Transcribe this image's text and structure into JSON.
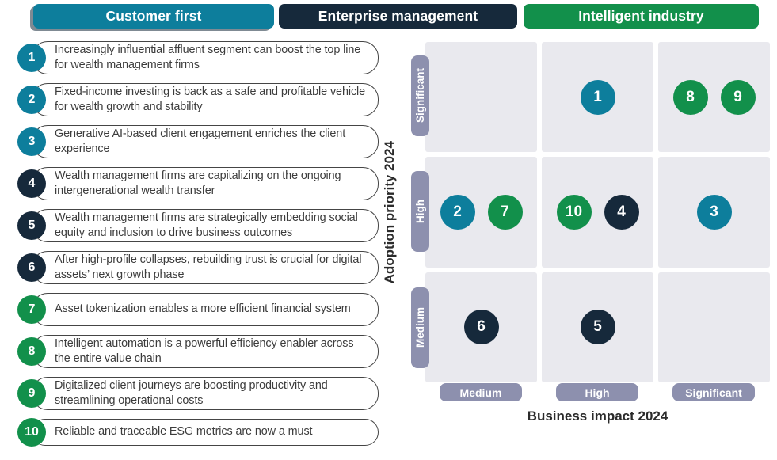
{
  "legend_tabs": [
    {
      "label": "Customer first",
      "color": "#0d7e9c"
    },
    {
      "label": "Enterprise management",
      "color": "#16293b"
    },
    {
      "label": "Intelligent industry",
      "color": "#12904b"
    }
  ],
  "trends": [
    {
      "num": "1",
      "category": 0,
      "text": "Increasingly influential affluent segment can boost the top line for wealth management firms"
    },
    {
      "num": "2",
      "category": 0,
      "text": "Fixed-income investing is back as a safe and profitable vehicle for wealth growth and stability"
    },
    {
      "num": "3",
      "category": 0,
      "text": "Generative AI-based client engagement enriches the client experience"
    },
    {
      "num": "4",
      "category": 1,
      "text": "Wealth management firms are capitalizing on the ongoing intergenerational wealth transfer"
    },
    {
      "num": "5",
      "category": 1,
      "text": "Wealth management firms are strategically embedding social equity and inclusion to drive business outcomes"
    },
    {
      "num": "6",
      "category": 1,
      "text": "After high-profile collapses, rebuilding trust is crucial for digital assets’ next growth phase"
    },
    {
      "num": "7",
      "category": 2,
      "text": "Asset tokenization enables a more efficient financial system"
    },
    {
      "num": "8",
      "category": 2,
      "text": "Intelligent automation is a powerful efficiency enabler across the entire value chain"
    },
    {
      "num": "9",
      "category": 2,
      "text": "Digitalized client journeys are boosting productivity and streamlining operational costs"
    },
    {
      "num": "10",
      "category": 2,
      "text": "Reliable and traceable ESG metrics are now a must"
    }
  ],
  "matrix": {
    "y_axis_label": "Adoption priority 2024",
    "x_axis_label": "Business impact 2024",
    "row_labels": [
      "Significant",
      "High",
      "Medium"
    ],
    "col_labels": [
      "Medium",
      "High",
      "Significant"
    ],
    "cells": [
      [
        [],
        [
          "1"
        ],
        [
          "8",
          "9"
        ]
      ],
      [
        [
          "2",
          "7"
        ],
        [
          "10",
          "4"
        ],
        [
          "3"
        ]
      ],
      [
        [
          "6"
        ],
        [
          "5"
        ],
        []
      ]
    ],
    "colors": {
      "cell_background": "#e9e9ee",
      "axis_tab_background": "#8d90ae",
      "axis_text": "#2b2b2b"
    }
  },
  "chart_data": {
    "type": "scatter",
    "xlabel": "Business impact 2024",
    "ylabel": "Adoption priority 2024",
    "x_categories": [
      "Medium",
      "High",
      "Significant"
    ],
    "y_categories": [
      "Medium",
      "High",
      "Significant"
    ],
    "legend_position": "top",
    "grid": true,
    "series": [
      {
        "name": "Customer first",
        "color": "#0d7e9c",
        "points": [
          {
            "label": "1",
            "x": "High",
            "y": "Significant"
          },
          {
            "label": "2",
            "x": "Medium",
            "y": "High"
          },
          {
            "label": "3",
            "x": "Significant",
            "y": "High"
          }
        ]
      },
      {
        "name": "Enterprise management",
        "color": "#16293b",
        "points": [
          {
            "label": "4",
            "x": "High",
            "y": "High"
          },
          {
            "label": "5",
            "x": "High",
            "y": "Medium"
          },
          {
            "label": "6",
            "x": "Medium",
            "y": "Medium"
          }
        ]
      },
      {
        "name": "Intelligent industry",
        "color": "#12904b",
        "points": [
          {
            "label": "7",
            "x": "Medium",
            "y": "High"
          },
          {
            "label": "8",
            "x": "Significant",
            "y": "Significant"
          },
          {
            "label": "9",
            "x": "Significant",
            "y": "Significant"
          },
          {
            "label": "10",
            "x": "High",
            "y": "High"
          }
        ]
      }
    ]
  }
}
